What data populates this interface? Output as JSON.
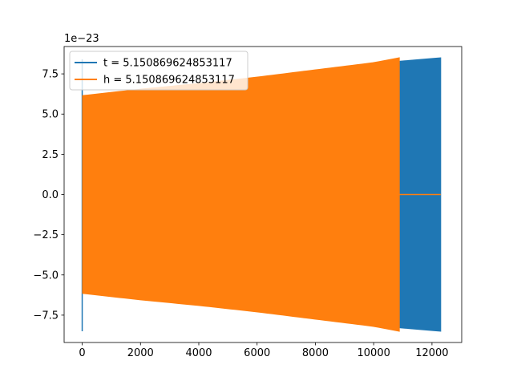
{
  "chart_data": {
    "type": "line",
    "title": "",
    "xlabel": "",
    "ylabel": "",
    "y_offset_label": "1e−23",
    "xlim": [
      -620,
      13020
    ],
    "ylim": [
      -9.2,
      9.2
    ],
    "x_ticks": [
      0,
      2000,
      4000,
      6000,
      8000,
      10000,
      12000
    ],
    "x_tick_labels": [
      "0",
      "2000",
      "4000",
      "6000",
      "8000",
      "10000",
      "12000"
    ],
    "y_ticks": [
      -7.5,
      -5.0,
      -2.5,
      0.0,
      2.5,
      5.0,
      7.5
    ],
    "y_tick_labels": [
      "−7.5",
      "−5.0",
      "−2.5",
      "0.0",
      "2.5",
      "5.0",
      "7.5"
    ],
    "grid": false,
    "legend_position": "upper-left",
    "series": [
      {
        "name": "t = 5.150869624853117",
        "color": "#1f77b4",
        "kind": "oscillation-envelope",
        "x_start": 0,
        "x_end": 12300,
        "initial_spike": {
          "x": 0,
          "low": -8.5,
          "high": 8.4
        },
        "envelope_points": [
          [
            10,
            6.1
          ],
          [
            2000,
            6.5
          ],
          [
            4000,
            6.85
          ],
          [
            6000,
            7.25
          ],
          [
            8000,
            7.7
          ],
          [
            10000,
            8.15
          ],
          [
            12300,
            8.5
          ]
        ]
      },
      {
        "name": "h = 5.150869624853117",
        "color": "#ff7f0e",
        "kind": "oscillation-envelope",
        "x_start": 0,
        "x_end": 10880,
        "tail_zero_until": 12300,
        "envelope_points": [
          [
            10,
            6.15
          ],
          [
            2000,
            6.55
          ],
          [
            4000,
            6.9
          ],
          [
            6000,
            7.3
          ],
          [
            8000,
            7.75
          ],
          [
            10000,
            8.2
          ],
          [
            10880,
            8.5
          ]
        ]
      }
    ]
  }
}
